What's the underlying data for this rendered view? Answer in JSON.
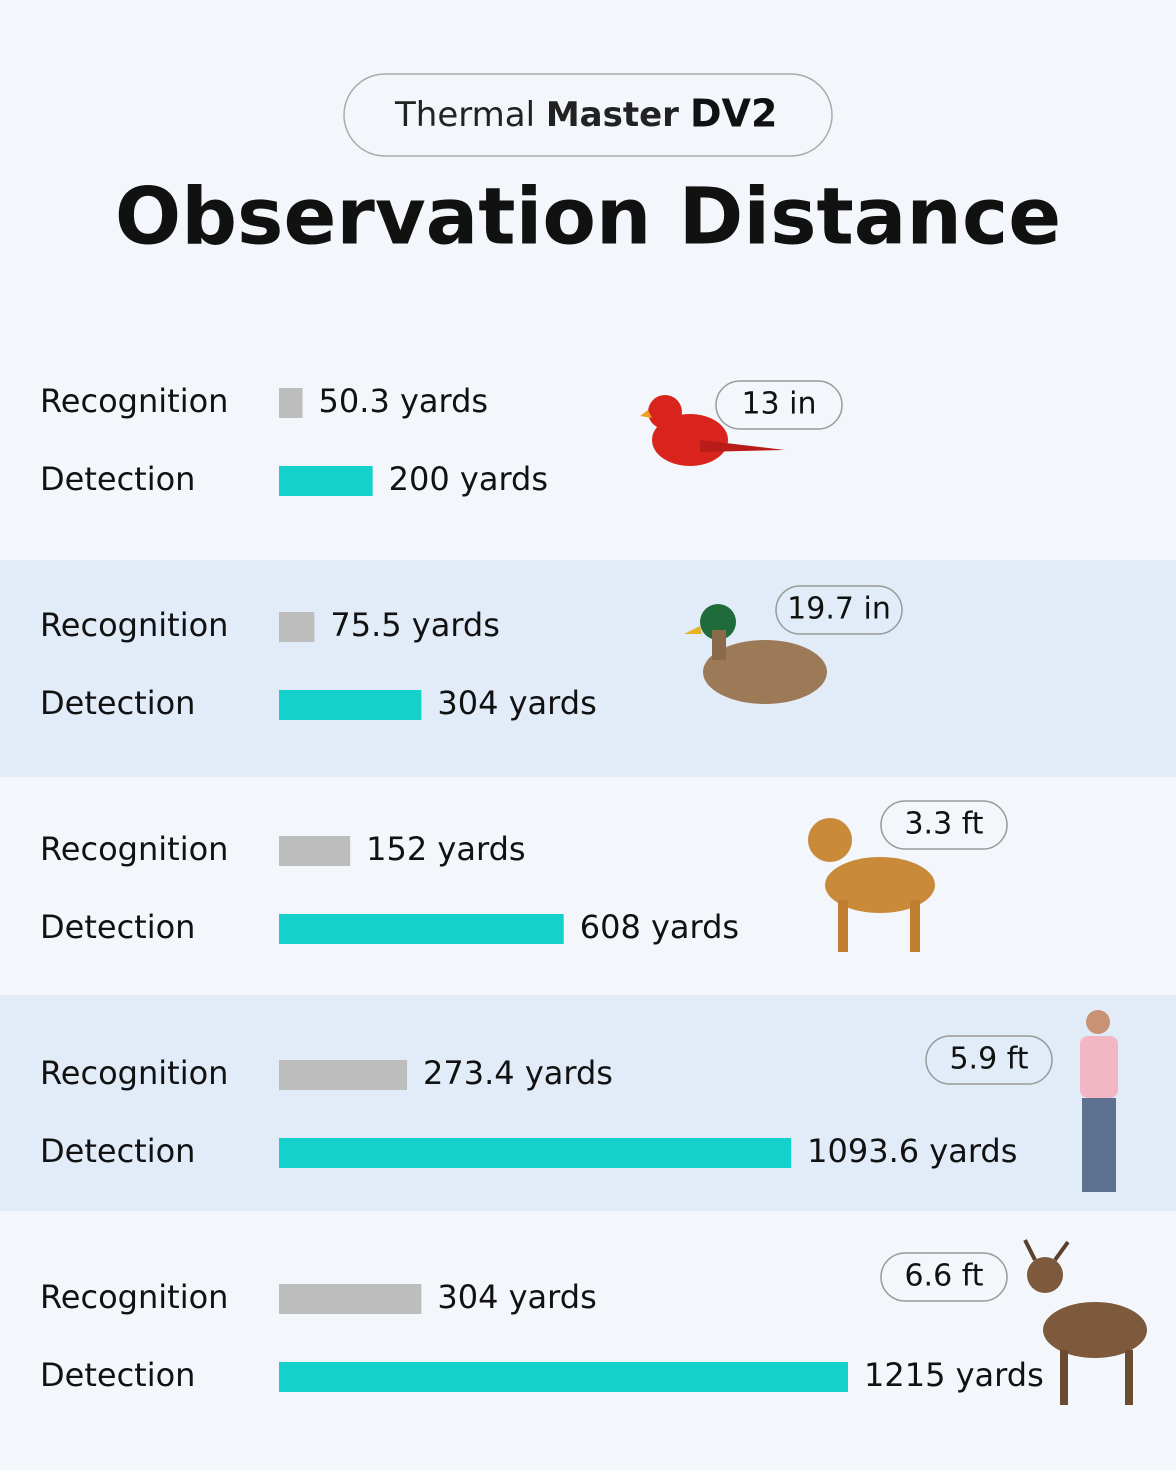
{
  "chart_data": {
    "type": "bar",
    "header": {
      "brand_light": "Thermal",
      "brand_bold": "Master",
      "model": "DV2"
    },
    "title": "Observation Distance",
    "categories": [
      null,
      null,
      null,
      null,
      null
    ],
    "annotations": [
      "13 in",
      "19.7 in",
      "3.3 ft",
      "5.9 ft",
      "6.6 ft"
    ],
    "series": [
      {
        "name": "Recognition",
        "color": "#bdbdbd",
        "values": [
          50.3,
          75.5,
          152,
          273.4,
          304
        ],
        "value_labels": [
          "50.3 yards",
          "75.5 yards",
          "152 yards",
          "273.4 yards",
          "304 yards"
        ]
      },
      {
        "name": "Detection",
        "color": "#14d1cb",
        "values": [
          200,
          304,
          608,
          1093.6,
          1215
        ],
        "value_labels": [
          "200 yards",
          "304 yards",
          "608 yards",
          "1093.6 yards",
          "1215 yards"
        ]
      }
    ],
    "xlim": [
      0,
      1215
    ]
  }
}
